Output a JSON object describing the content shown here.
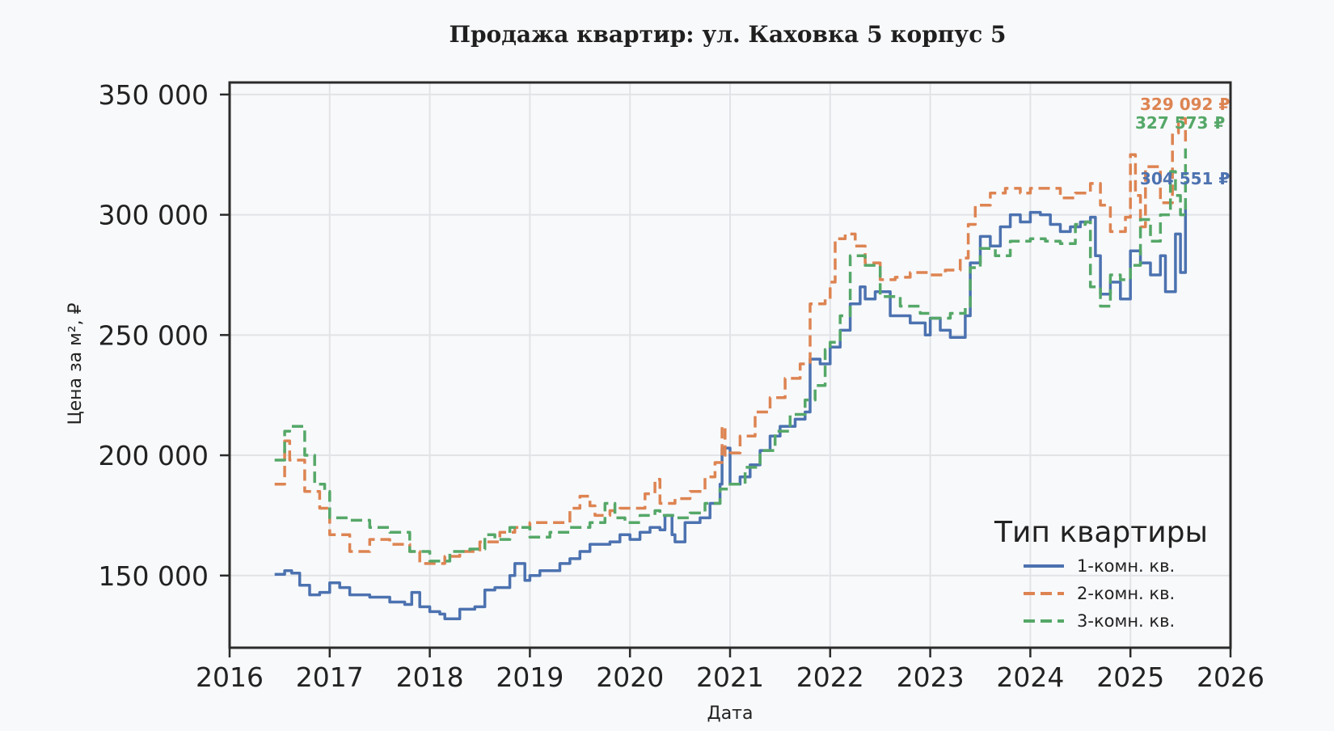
{
  "chart_data": {
    "type": "line",
    "title": "Продажа квартир: ул. Каховка 5 корпус 5",
    "xlabel": "Дата",
    "ylabel": "Цена за м², ₽",
    "xlim": [
      2016,
      2026
    ],
    "ylim": [
      120000,
      355000
    ],
    "x_ticks": [
      "2016",
      "2017",
      "2018",
      "2019",
      "2020",
      "2021",
      "2022",
      "2023",
      "2024",
      "2025",
      "2026"
    ],
    "y_ticks": [
      "150 000",
      "200 000",
      "250 000",
      "300 000",
      "350 000"
    ],
    "grid": true,
    "legend": {
      "title": "Тип квартиры",
      "position": "lower-right"
    },
    "series": [
      {
        "name": "1-комн. кв.",
        "color": "#4c72b0",
        "style": "solid",
        "end_label": "304 551 ₽",
        "x": [
          2016.45,
          2016.55,
          2016.62,
          2016.7,
          2016.8,
          2016.9,
          2017.0,
          2017.1,
          2017.2,
          2017.4,
          2017.6,
          2017.75,
          2017.82,
          2017.9,
          2018.0,
          2018.1,
          2018.15,
          2018.3,
          2018.45,
          2018.55,
          2018.65,
          2018.8,
          2018.85,
          2018.95,
          2019.0,
          2019.1,
          2019.3,
          2019.4,
          2019.5,
          2019.6,
          2019.8,
          2019.9,
          2020.0,
          2020.1,
          2020.2,
          2020.3,
          2020.35,
          2020.42,
          2020.45,
          2020.55,
          2020.7,
          2020.8,
          2020.9,
          2020.92,
          2021.0,
          2021.1,
          2021.2,
          2021.3,
          2021.4,
          2021.5,
          2021.65,
          2021.75,
          2021.8,
          2021.9,
          2022.0,
          2022.1,
          2022.2,
          2022.3,
          2022.35,
          2022.45,
          2022.6,
          2022.8,
          2022.95,
          2023.0,
          2023.1,
          2023.2,
          2023.35,
          2023.4,
          2023.5,
          2023.6,
          2023.7,
          2023.8,
          2023.9,
          2024.0,
          2024.1,
          2024.2,
          2024.3,
          2024.4,
          2024.5,
          2024.6,
          2024.65,
          2024.7,
          2024.8,
          2024.9,
          2025.0,
          2025.1,
          2025.2,
          2025.3,
          2025.35,
          2025.45,
          2025.5,
          2025.55
        ],
        "values": [
          150500,
          152000,
          151000,
          146000,
          142000,
          143000,
          147000,
          145000,
          142000,
          141000,
          139000,
          138000,
          143000,
          137000,
          135000,
          134000,
          132000,
          136000,
          137000,
          144000,
          145000,
          150000,
          155000,
          148000,
          150000,
          152000,
          155000,
          157000,
          160000,
          163000,
          164000,
          167000,
          165000,
          168000,
          170000,
          169000,
          175000,
          167000,
          164000,
          172000,
          174000,
          180000,
          188000,
          203000,
          188000,
          191000,
          196000,
          202000,
          208000,
          212000,
          215000,
          218000,
          240000,
          238000,
          245000,
          252000,
          263000,
          270000,
          265000,
          268000,
          258000,
          255000,
          250000,
          257000,
          252000,
          249000,
          258000,
          280000,
          291000,
          287000,
          295000,
          300000,
          297000,
          301000,
          300000,
          296000,
          293000,
          295000,
          297000,
          299000,
          283000,
          267000,
          272000,
          265000,
          285000,
          280000,
          275000,
          283000,
          268000,
          292000,
          276000,
          304551
        ]
      },
      {
        "name": "2-комн. кв.",
        "color": "#dd8452",
        "style": "dashed",
        "end_label": "329 092 ₽",
        "x": [
          2016.45,
          2016.55,
          2016.6,
          2016.75,
          2016.9,
          2017.0,
          2017.2,
          2017.4,
          2017.6,
          2017.8,
          2017.9,
          2018.0,
          2018.15,
          2018.3,
          2018.5,
          2018.7,
          2018.85,
          2019.0,
          2019.2,
          2019.4,
          2019.5,
          2019.6,
          2019.65,
          2019.8,
          2019.9,
          2020.0,
          2020.15,
          2020.25,
          2020.3,
          2020.45,
          2020.6,
          2020.75,
          2020.85,
          2020.92,
          2020.95,
          2021.0,
          2021.1,
          2021.25,
          2021.4,
          2021.55,
          2021.7,
          2021.8,
          2021.95,
          2022.0,
          2022.05,
          2022.15,
          2022.25,
          2022.35,
          2022.5,
          2022.65,
          2022.8,
          2023.0,
          2023.15,
          2023.3,
          2023.38,
          2023.45,
          2023.6,
          2023.75,
          2023.9,
          2024.0,
          2024.15,
          2024.3,
          2024.45,
          2024.6,
          2024.7,
          2024.8,
          2024.95,
          2025.0,
          2025.05,
          2025.1,
          2025.15,
          2025.3,
          2025.42,
          2025.48,
          2025.55
        ],
        "values": [
          188000,
          206000,
          198000,
          185000,
          178000,
          167000,
          160000,
          165000,
          163000,
          160000,
          155000,
          155000,
          158000,
          160000,
          164000,
          168000,
          170000,
          172000,
          172000,
          178000,
          183000,
          179000,
          175000,
          177000,
          178000,
          178000,
          184000,
          190000,
          180000,
          182000,
          185000,
          191000,
          197000,
          212000,
          200000,
          201000,
          208000,
          218000,
          224000,
          232000,
          238000,
          263000,
          265000,
          272000,
          290000,
          292000,
          287000,
          280000,
          273000,
          274000,
          276000,
          275000,
          277000,
          282000,
          296000,
          304000,
          309000,
          311000,
          309000,
          311000,
          311000,
          307000,
          309000,
          313000,
          304000,
          293000,
          299000,
          325000,
          308000,
          295000,
          320000,
          305000,
          334000,
          340000,
          329092
        ]
      },
      {
        "name": "3-комн. кв.",
        "color": "#55a868",
        "style": "dashed",
        "end_label": "327 573 ₽",
        "x": [
          2016.45,
          2016.55,
          2016.6,
          2016.75,
          2016.85,
          2016.95,
          2017.0,
          2017.2,
          2017.4,
          2017.6,
          2017.8,
          2018.0,
          2018.2,
          2018.4,
          2018.55,
          2018.65,
          2018.8,
          2019.0,
          2019.2,
          2019.4,
          2019.6,
          2019.75,
          2019.85,
          2019.95,
          2020.1,
          2020.25,
          2020.3,
          2020.45,
          2020.6,
          2020.75,
          2020.9,
          2021.0,
          2021.15,
          2021.3,
          2021.45,
          2021.6,
          2021.75,
          2021.85,
          2021.95,
          2022.0,
          2022.1,
          2022.2,
          2022.35,
          2022.5,
          2022.7,
          2022.9,
          2023.0,
          2023.2,
          2023.35,
          2023.4,
          2023.5,
          2023.65,
          2023.8,
          2024.0,
          2024.15,
          2024.3,
          2024.45,
          2024.55,
          2024.6,
          2024.7,
          2024.8,
          2024.9,
          2025.0,
          2025.1,
          2025.2,
          2025.3,
          2025.4,
          2025.45,
          2025.5,
          2025.55
        ],
        "values": [
          198000,
          210000,
          212000,
          200000,
          188000,
          185000,
          174000,
          173000,
          170000,
          168000,
          160000,
          156000,
          160000,
          161000,
          167000,
          165000,
          170000,
          166000,
          168000,
          170000,
          172000,
          180000,
          174000,
          172000,
          175000,
          177000,
          175000,
          174000,
          176000,
          180000,
          186000,
          188000,
          195000,
          202000,
          210000,
          217000,
          223000,
          229000,
          244000,
          247000,
          258000,
          283000,
          279000,
          266000,
          262000,
          259000,
          257000,
          259000,
          262000,
          278000,
          286000,
          283000,
          289000,
          290000,
          289000,
          288000,
          296000,
          297000,
          270000,
          262000,
          275000,
          273000,
          279000,
          298000,
          289000,
          300000,
          318000,
          308000,
          300000,
          327573
        ]
      }
    ]
  }
}
